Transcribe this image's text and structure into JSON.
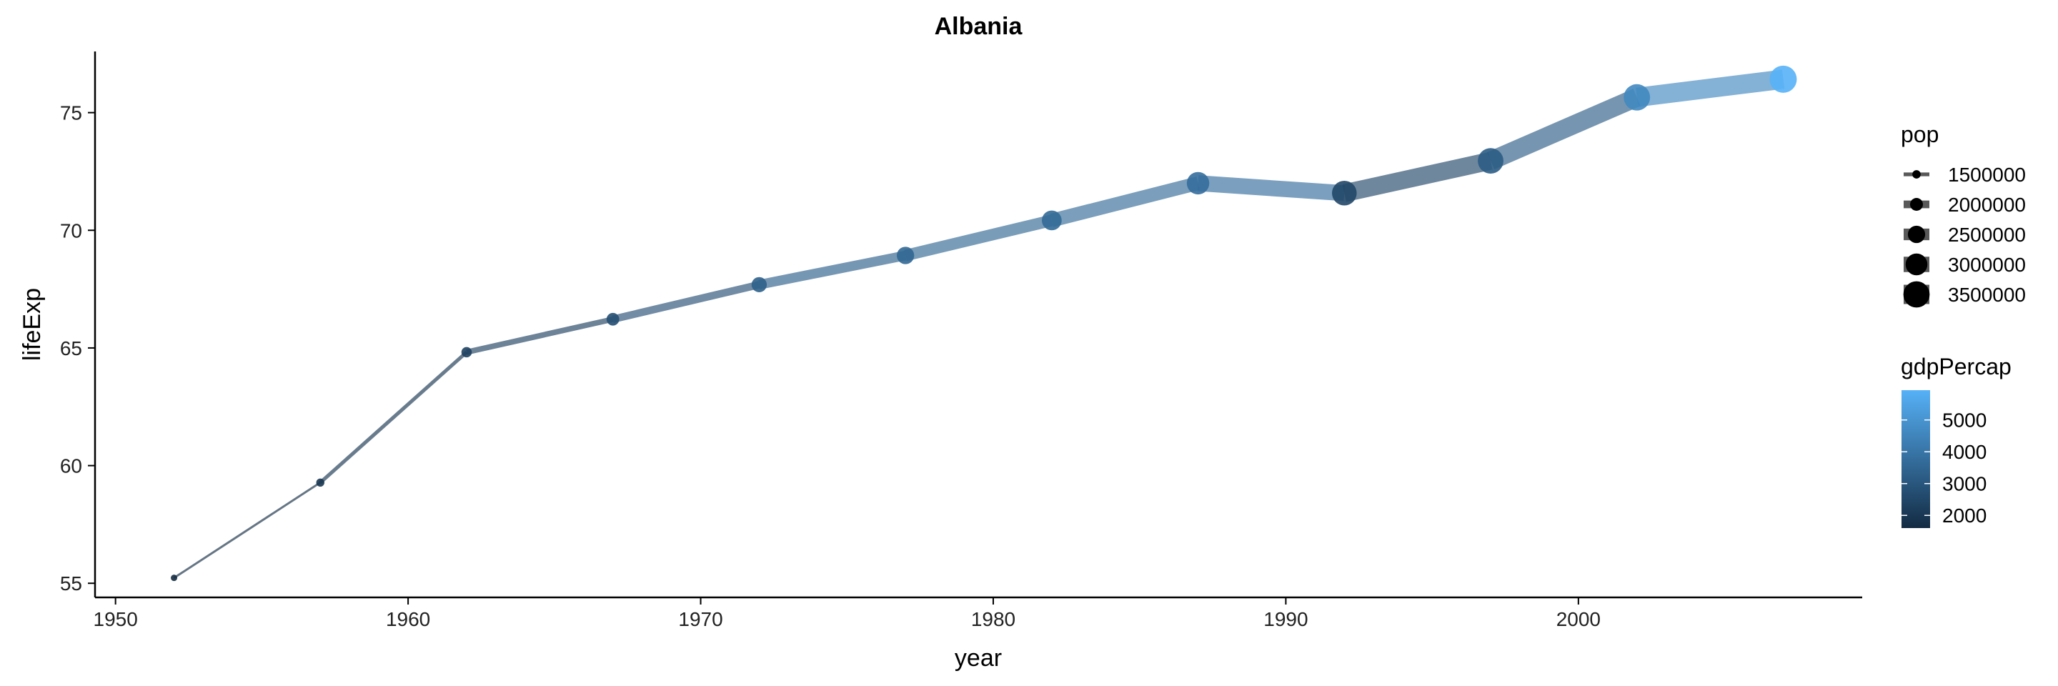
{
  "chart_data": {
    "type": "line",
    "title": "Albania",
    "xlabel": "year",
    "ylabel": "lifeExp",
    "xlim": [
      1949.3,
      2009.7
    ],
    "ylim": [
      54.4,
      77.6
    ],
    "x_ticks": [
      1950,
      1960,
      1970,
      1980,
      1990,
      2000
    ],
    "y_ticks": [
      55,
      60,
      65,
      70,
      75
    ],
    "grid": false,
    "legend_position": "right",
    "points": [
      {
        "year": 1952,
        "lifeExp": 55.23,
        "pop": 1282697,
        "gdpPercap": 1601
      },
      {
        "year": 1957,
        "lifeExp": 59.28,
        "pop": 1476505,
        "gdpPercap": 1942
      },
      {
        "year": 1962,
        "lifeExp": 64.82,
        "pop": 1728137,
        "gdpPercap": 2313
      },
      {
        "year": 1967,
        "lifeExp": 66.22,
        "pop": 1984060,
        "gdpPercap": 2760
      },
      {
        "year": 1972,
        "lifeExp": 67.69,
        "pop": 2263554,
        "gdpPercap": 3313
      },
      {
        "year": 1977,
        "lifeExp": 68.93,
        "pop": 2509048,
        "gdpPercap": 3533
      },
      {
        "year": 1982,
        "lifeExp": 70.42,
        "pop": 2780097,
        "gdpPercap": 3631
      },
      {
        "year": 1987,
        "lifeExp": 72.0,
        "pop": 3075321,
        "gdpPercap": 3739
      },
      {
        "year": 1992,
        "lifeExp": 71.58,
        "pop": 3326498,
        "gdpPercap": 2497
      },
      {
        "year": 1997,
        "lifeExp": 72.95,
        "pop": 3428038,
        "gdpPercap": 3193
      },
      {
        "year": 2002,
        "lifeExp": 75.65,
        "pop": 3508512,
        "gdpPercap": 4604
      },
      {
        "year": 2007,
        "lifeExp": 76.42,
        "pop": 3600523,
        "gdpPercap": 5937
      }
    ],
    "legend_pop": {
      "title": "pop",
      "values": [
        1500000,
        2000000,
        2500000,
        3000000,
        3500000
      ],
      "labels": [
        "1500000",
        "2000000",
        "2500000",
        "3000000",
        "3500000"
      ]
    },
    "legend_gdp": {
      "title": "gdpPercap",
      "ticks": [
        2000,
        3000,
        4000,
        5000
      ],
      "labels": [
        "2000",
        "3000",
        "4000",
        "5000"
      ],
      "range": [
        1601,
        5937
      ],
      "colors": {
        "low": "#132B43",
        "high": "#56B1F7"
      }
    }
  }
}
